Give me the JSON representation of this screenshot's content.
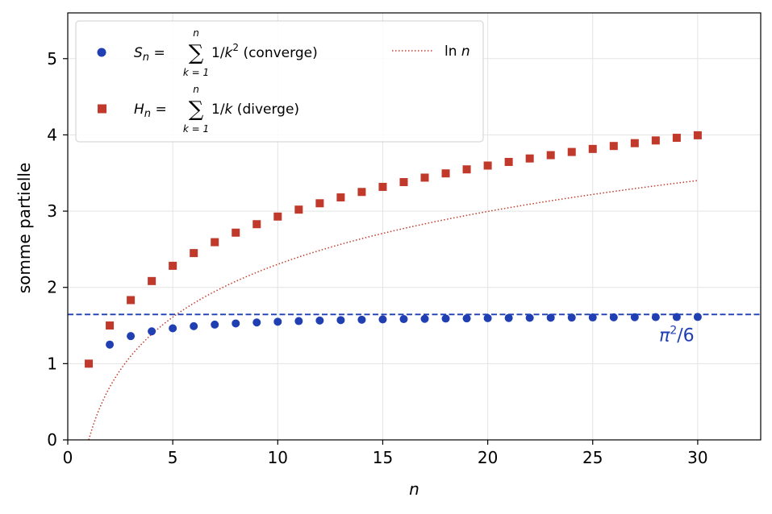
{
  "chart_data": {
    "type": "scatter",
    "xlabel": "n",
    "ylabel": "somme partielle",
    "xlim": [
      0,
      33
    ],
    "ylim": [
      0,
      5.6
    ],
    "xticks": [
      0,
      5,
      10,
      15,
      20,
      25,
      30
    ],
    "yticks": [
      0,
      1,
      2,
      3,
      4,
      5
    ],
    "grid": true,
    "legend_position": "top-left",
    "x": [
      1,
      2,
      3,
      4,
      5,
      6,
      7,
      8,
      9,
      10,
      11,
      12,
      13,
      14,
      15,
      16,
      17,
      18,
      19,
      20,
      21,
      22,
      23,
      24,
      25,
      26,
      27,
      28,
      29,
      30
    ],
    "series": [
      {
        "name": "S_n = Σ 1/k² (converge)",
        "legend_prefix": "S",
        "legend_sub": "n",
        "legend_sum_top": "n",
        "legend_sum_bottom": "k = 1",
        "legend_term": "1/k",
        "legend_term_sup": "2",
        "legend_suffix": "(converge)",
        "marker": "circle",
        "color": "#1f3fb3",
        "values": [
          1.0,
          1.25,
          1.3611,
          1.4236,
          1.4636,
          1.4914,
          1.5118,
          1.5274,
          1.5398,
          1.5498,
          1.558,
          1.565,
          1.5709,
          1.576,
          1.5804,
          1.5843,
          1.5878,
          1.5909,
          1.5937,
          1.5962,
          1.5984,
          1.6005,
          1.6024,
          1.6041,
          1.6057,
          1.6072,
          1.6086,
          1.6098,
          1.611,
          1.6122
        ]
      },
      {
        "name": "H_n = Σ 1/k (diverge)",
        "legend_prefix": "H",
        "legend_sub": "n",
        "legend_sum_top": "n",
        "legend_sum_bottom": "k = 1",
        "legend_term": "1/k",
        "legend_term_sup": "",
        "legend_suffix": "(diverge)",
        "marker": "square",
        "color": "#c0392b",
        "values": [
          1.0,
          1.5,
          1.8333,
          2.0833,
          2.2833,
          2.45,
          2.5929,
          2.7179,
          2.829,
          2.929,
          3.0199,
          3.1032,
          3.1801,
          3.2516,
          3.3182,
          3.3807,
          3.4396,
          3.4951,
          3.5477,
          3.5977,
          3.6454,
          3.6908,
          3.7343,
          3.776,
          3.816,
          3.8544,
          3.8915,
          3.9272,
          3.9617,
          3.995
        ]
      },
      {
        "name": "ln n",
        "legend_label": "ln n",
        "line_style": "dotted",
        "color": "#c0392b",
        "function": "ln",
        "x_range": [
          1,
          30
        ]
      }
    ],
    "reference_lines": [
      {
        "orientation": "horizontal",
        "y": 1.6449,
        "style": "dashed",
        "color": "#1f3fb3",
        "label": "π²/6",
        "label_base": "π",
        "label_sup": "2",
        "label_rest": "/6",
        "label_x": 29,
        "label_y": 1.38
      }
    ]
  }
}
